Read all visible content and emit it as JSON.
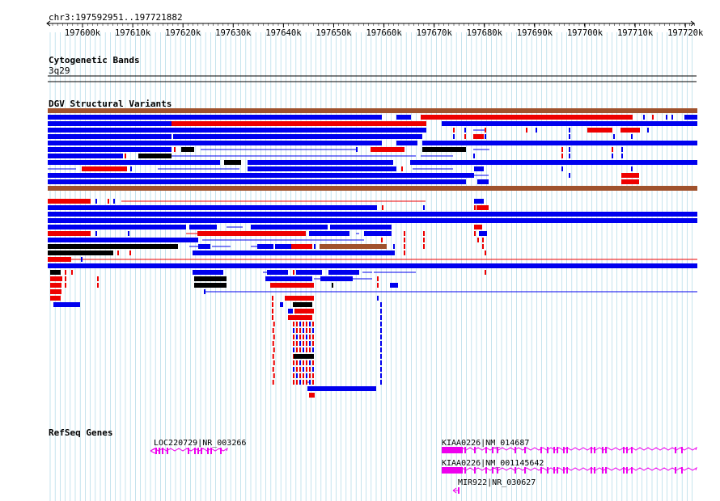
{
  "ruler": {
    "location": "chr3:197592951..197721882",
    "ticks": [
      "197600k",
      "197610k",
      "197620k",
      "197630k",
      "197640k",
      "197650k",
      "197660k",
      "197670k",
      "197680k",
      "197690k",
      "197700k",
      "197710k",
      "197720k"
    ]
  },
  "cyto": {
    "title": "Cytogenetic Bands",
    "band": "3q29"
  },
  "dgv": {
    "title": "DGV Structural Variants"
  },
  "refseq": {
    "title": "RefSeq Genes",
    "genes": [
      {
        "label": "LOC220729|NR_003266"
      },
      {
        "label": "KIAA0226|NM_014687"
      },
      {
        "label": "KIAA0226|NM_001145642"
      },
      {
        "label": "MIR922|NR_030627"
      }
    ]
  },
  "colors": {
    "gain": "#0000ee",
    "loss": "#ee0000",
    "complex": "#000000",
    "inversion": "#a0522d",
    "transcript": "#ee00ee",
    "grid": "#add8e6"
  }
}
